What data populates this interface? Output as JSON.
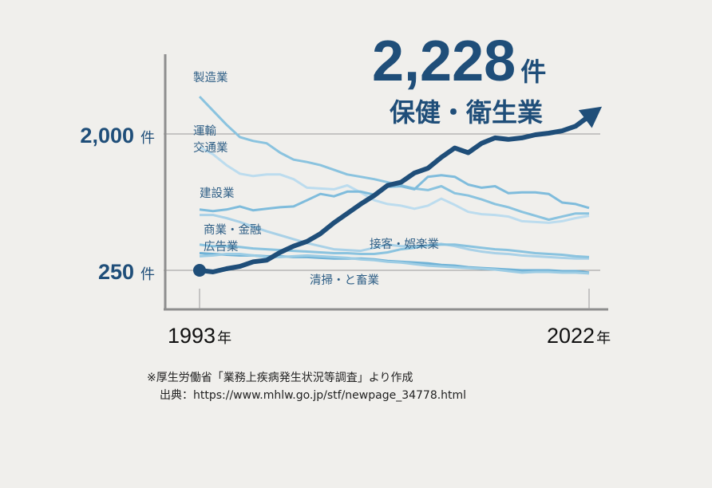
{
  "chart_data": {
    "type": "line",
    "highlight": {
      "value_label": "2,228",
      "value_unit": "件",
      "series_label": "保健・衛生業"
    },
    "x_range": [
      1993,
      2022
    ],
    "x_ticks": [
      {
        "value": 1993,
        "num": "1993",
        "unit": "年"
      },
      {
        "value": 2022,
        "num": "2022",
        "unit": "年"
      }
    ],
    "y_ticks": [
      {
        "value": 250,
        "num": "250",
        "unit": "件"
      },
      {
        "value": 2000,
        "num": "2,000",
        "unit": "件"
      }
    ],
    "grid": "horizontal lines at labeled ticks",
    "series": [
      {
        "name": "保健・衛生業",
        "color": "#1f4e79",
        "highlight": true,
        "points": [
          [
            1993,
            250
          ],
          [
            1994,
            230
          ],
          [
            1995,
            270
          ],
          [
            1996,
            300
          ],
          [
            1997,
            360
          ],
          [
            1998,
            380
          ],
          [
            1999,
            480
          ],
          [
            2000,
            560
          ],
          [
            2001,
            620
          ],
          [
            2002,
            720
          ],
          [
            2003,
            860
          ],
          [
            2004,
            980
          ],
          [
            2005,
            1100
          ],
          [
            2006,
            1210
          ],
          [
            2007,
            1340
          ],
          [
            2008,
            1380
          ],
          [
            2009,
            1500
          ],
          [
            2010,
            1560
          ],
          [
            2011,
            1700
          ],
          [
            2012,
            1820
          ],
          [
            2013,
            1760
          ],
          [
            2014,
            1880
          ],
          [
            2015,
            1950
          ],
          [
            2016,
            1930
          ],
          [
            2017,
            1950
          ],
          [
            2018,
            1990
          ],
          [
            2019,
            2010
          ],
          [
            2020,
            2040
          ],
          [
            2021,
            2100
          ],
          [
            2022,
            2228
          ]
        ]
      },
      {
        "name": "製造業",
        "color": "#8ac3df",
        "points": [
          [
            1993,
            2480
          ],
          [
            1994,
            2300
          ],
          [
            1995,
            2120
          ],
          [
            1996,
            1960
          ],
          [
            1997,
            1910
          ],
          [
            1998,
            1880
          ],
          [
            1999,
            1760
          ],
          [
            2000,
            1670
          ],
          [
            2001,
            1640
          ],
          [
            2002,
            1600
          ],
          [
            2003,
            1540
          ],
          [
            2004,
            1480
          ],
          [
            2005,
            1450
          ],
          [
            2006,
            1420
          ],
          [
            2007,
            1380
          ],
          [
            2008,
            1340
          ],
          [
            2009,
            1300
          ],
          [
            2010,
            1280
          ],
          [
            2011,
            1330
          ],
          [
            2012,
            1240
          ],
          [
            2013,
            1210
          ],
          [
            2014,
            1160
          ],
          [
            2015,
            1100
          ],
          [
            2016,
            1060
          ],
          [
            2017,
            1000
          ],
          [
            2018,
            950
          ],
          [
            2019,
            900
          ],
          [
            2020,
            940
          ],
          [
            2021,
            980
          ],
          [
            2022,
            980
          ]
        ]
      },
      {
        "name": "運輸交通業",
        "color": "#bcdcee",
        "points": [
          [
            1993,
            1830
          ],
          [
            1994,
            1740
          ],
          [
            1995,
            1600
          ],
          [
            1996,
            1490
          ],
          [
            1997,
            1460
          ],
          [
            1998,
            1480
          ],
          [
            1999,
            1480
          ],
          [
            2000,
            1420
          ],
          [
            2001,
            1310
          ],
          [
            2002,
            1300
          ],
          [
            2003,
            1290
          ],
          [
            2004,
            1340
          ],
          [
            2005,
            1250
          ],
          [
            2006,
            1150
          ],
          [
            2007,
            1100
          ],
          [
            2008,
            1080
          ],
          [
            2009,
            1040
          ],
          [
            2010,
            1080
          ],
          [
            2011,
            1170
          ],
          [
            2012,
            1090
          ],
          [
            2013,
            1000
          ],
          [
            2014,
            970
          ],
          [
            2015,
            960
          ],
          [
            2016,
            940
          ],
          [
            2017,
            880
          ],
          [
            2018,
            870
          ],
          [
            2019,
            860
          ],
          [
            2020,
            880
          ],
          [
            2021,
            920
          ],
          [
            2022,
            950
          ]
        ]
      },
      {
        "name": "建設業",
        "color": "#7fbcdc",
        "points": [
          [
            1993,
            1030
          ],
          [
            1994,
            1010
          ],
          [
            1995,
            1030
          ],
          [
            1996,
            1070
          ],
          [
            1997,
            1020
          ],
          [
            1998,
            1040
          ],
          [
            1999,
            1060
          ],
          [
            2000,
            1070
          ],
          [
            2001,
            1150
          ],
          [
            2002,
            1230
          ],
          [
            2003,
            1200
          ],
          [
            2004,
            1260
          ],
          [
            2005,
            1260
          ],
          [
            2006,
            1220
          ],
          [
            2007,
            1320
          ],
          [
            2008,
            1330
          ],
          [
            2009,
            1290
          ],
          [
            2010,
            1450
          ],
          [
            2011,
            1470
          ],
          [
            2012,
            1450
          ],
          [
            2013,
            1350
          ],
          [
            2014,
            1310
          ],
          [
            2015,
            1330
          ],
          [
            2016,
            1240
          ],
          [
            2017,
            1250
          ],
          [
            2018,
            1250
          ],
          [
            2019,
            1230
          ],
          [
            2020,
            1120
          ],
          [
            2021,
            1100
          ],
          [
            2022,
            1050
          ]
        ]
      },
      {
        "name": "商業・金融広告業",
        "color": "#a9d1e7",
        "points": [
          [
            1993,
            960
          ],
          [
            1994,
            960
          ],
          [
            1995,
            920
          ],
          [
            1996,
            870
          ],
          [
            1997,
            810
          ],
          [
            1998,
            750
          ],
          [
            1999,
            700
          ],
          [
            2000,
            650
          ],
          [
            2001,
            600
          ],
          [
            2002,
            560
          ],
          [
            2003,
            520
          ],
          [
            2004,
            510
          ],
          [
            2005,
            500
          ],
          [
            2006,
            540
          ],
          [
            2007,
            580
          ],
          [
            2008,
            560
          ],
          [
            2009,
            560
          ],
          [
            2010,
            570
          ],
          [
            2011,
            590
          ],
          [
            2012,
            560
          ],
          [
            2013,
            520
          ],
          [
            2014,
            490
          ],
          [
            2015,
            470
          ],
          [
            2016,
            460
          ],
          [
            2017,
            440
          ],
          [
            2018,
            430
          ],
          [
            2019,
            420
          ],
          [
            2020,
            410
          ],
          [
            2021,
            400
          ],
          [
            2022,
            400
          ]
        ]
      },
      {
        "name": "接客・娯楽業",
        "color": "#8ac3df",
        "points": [
          [
            1993,
            580
          ],
          [
            1994,
            560
          ],
          [
            1995,
            560
          ],
          [
            1996,
            550
          ],
          [
            1997,
            530
          ],
          [
            1998,
            520
          ],
          [
            1999,
            510
          ],
          [
            2000,
            500
          ],
          [
            2001,
            490
          ],
          [
            2002,
            480
          ],
          [
            2003,
            470
          ],
          [
            2004,
            470
          ],
          [
            2005,
            460
          ],
          [
            2006,
            460
          ],
          [
            2007,
            480
          ],
          [
            2008,
            520
          ],
          [
            2009,
            540
          ],
          [
            2010,
            570
          ],
          [
            2011,
            580
          ],
          [
            2012,
            580
          ],
          [
            2013,
            560
          ],
          [
            2014,
            540
          ],
          [
            2015,
            520
          ],
          [
            2016,
            510
          ],
          [
            2017,
            490
          ],
          [
            2018,
            470
          ],
          [
            2019,
            460
          ],
          [
            2020,
            450
          ],
          [
            2021,
            430
          ],
          [
            2022,
            420
          ]
        ]
      },
      {
        "name": "清掃・と畜業",
        "color": "#6fb2d6",
        "points": [
          [
            1993,
            470
          ],
          [
            1994,
            460
          ],
          [
            1995,
            450
          ],
          [
            1996,
            440
          ],
          [
            1997,
            440
          ],
          [
            1998,
            430
          ],
          [
            1999,
            430
          ],
          [
            2000,
            420
          ],
          [
            2001,
            420
          ],
          [
            2002,
            410
          ],
          [
            2003,
            400
          ],
          [
            2004,
            400
          ],
          [
            2005,
            400
          ],
          [
            2006,
            390
          ],
          [
            2007,
            370
          ],
          [
            2008,
            360
          ],
          [
            2009,
            350
          ],
          [
            2010,
            340
          ],
          [
            2011,
            320
          ],
          [
            2012,
            310
          ],
          [
            2013,
            290
          ],
          [
            2014,
            280
          ],
          [
            2015,
            270
          ],
          [
            2016,
            260
          ],
          [
            2017,
            250
          ],
          [
            2018,
            250
          ],
          [
            2019,
            250
          ],
          [
            2020,
            240
          ],
          [
            2021,
            240
          ],
          [
            2022,
            220
          ]
        ]
      },
      {
        "name": "",
        "color": "#9ccce4",
        "points": [
          [
            1993,
            430
          ],
          [
            1994,
            440
          ],
          [
            1995,
            460
          ],
          [
            1996,
            460
          ],
          [
            1997,
            440
          ],
          [
            1998,
            420
          ],
          [
            1999,
            420
          ],
          [
            2000,
            430
          ],
          [
            2001,
            440
          ],
          [
            2002,
            430
          ],
          [
            2003,
            420
          ],
          [
            2004,
            410
          ],
          [
            2005,
            390
          ],
          [
            2006,
            380
          ],
          [
            2007,
            360
          ],
          [
            2008,
            350
          ],
          [
            2009,
            330
          ],
          [
            2010,
            310
          ],
          [
            2011,
            300
          ],
          [
            2012,
            290
          ],
          [
            2013,
            280
          ],
          [
            2014,
            270
          ],
          [
            2015,
            260
          ],
          [
            2016,
            240
          ],
          [
            2017,
            220
          ],
          [
            2018,
            230
          ],
          [
            2019,
            230
          ],
          [
            2020,
            220
          ],
          [
            2021,
            220
          ],
          [
            2022,
            210
          ]
        ]
      }
    ],
    "series_labels": [
      {
        "lines": [
          "製造業"
        ]
      },
      {
        "lines": [
          "運輸",
          "交通業"
        ]
      },
      {
        "lines": [
          "建設業"
        ]
      },
      {
        "lines": [
          "商業・金融",
          "広告業"
        ]
      },
      {
        "lines": [
          "接客・娯楽業"
        ]
      },
      {
        "lines": [
          "清掃・と畜業"
        ]
      }
    ]
  },
  "footnote": {
    "line1": "※厚生労働省「業務上疾病発生状況等調査」より作成",
    "line2": "出典：https://www.mhlw.go.jp/stf/newpage_34778.html"
  }
}
